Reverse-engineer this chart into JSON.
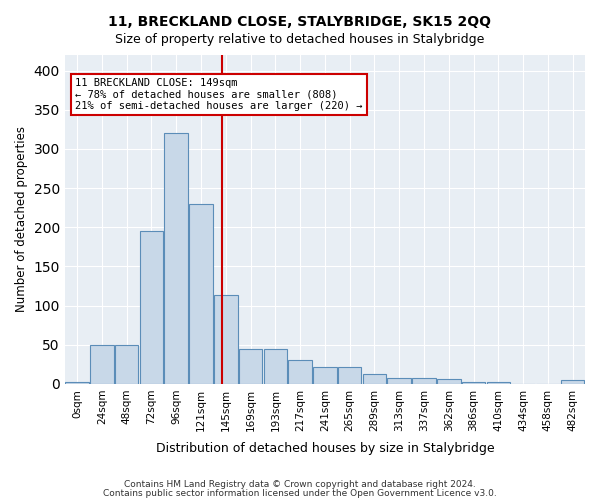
{
  "title": "11, BRECKLAND CLOSE, STALYBRIDGE, SK15 2QQ",
  "subtitle": "Size of property relative to detached houses in Stalybridge",
  "xlabel": "Distribution of detached houses by size in Stalybridge",
  "ylabel": "Number of detached properties",
  "bar_color": "#c8d8e8",
  "bar_edge_color": "#5b8db8",
  "background_color": "#e8eef4",
  "categories": [
    "0sqm",
    "24sqm",
    "48sqm",
    "72sqm",
    "96sqm",
    "121sqm",
    "145sqm",
    "169sqm",
    "193sqm",
    "217sqm",
    "241sqm",
    "265sqm",
    "289sqm",
    "313sqm",
    "337sqm",
    "362sqm",
    "386sqm",
    "410sqm",
    "434sqm",
    "458sqm",
    "482sqm"
  ],
  "values": [
    2,
    50,
    50,
    195,
    320,
    230,
    113,
    45,
    45,
    30,
    22,
    22,
    13,
    8,
    8,
    6,
    2,
    2,
    0,
    0,
    5
  ],
  "ylim": [
    0,
    420
  ],
  "yticks": [
    0,
    50,
    100,
    150,
    200,
    250,
    300,
    350,
    400
  ],
  "vline_pos": 5.83,
  "annotation_text": "11 BRECKLAND CLOSE: 149sqm\n← 78% of detached houses are smaller (808)\n21% of semi-detached houses are larger (220) →",
  "annotation_box_color": "#ffffff",
  "annotation_box_edge": "#cc0000",
  "vline_color": "#cc0000",
  "footer1": "Contains HM Land Registry data © Crown copyright and database right 2024.",
  "footer2": "Contains public sector information licensed under the Open Government Licence v3.0."
}
